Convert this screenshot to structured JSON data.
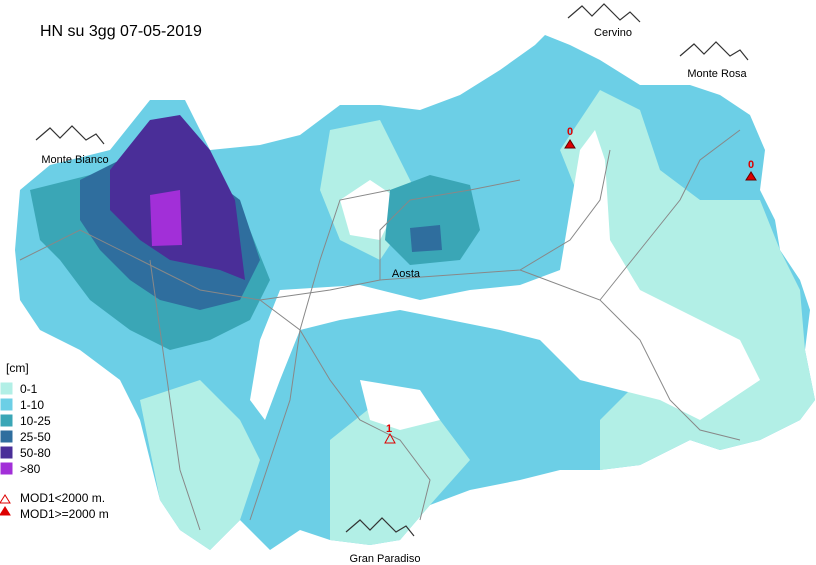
{
  "title": "HN su 3gg 07-05-2019",
  "places": [
    {
      "label": "Cervino"
    },
    {
      "label": "Monte Rosa"
    },
    {
      "label": "Monte Bianco"
    },
    {
      "label": "Aosta"
    },
    {
      "label": "Gran Paradiso"
    }
  ],
  "legend": {
    "unit": "[cm]",
    "classes": [
      {
        "label": "0-1",
        "color": "#b2efe6"
      },
      {
        "label": "1-10",
        "color": "#6ccfe6"
      },
      {
        "label": "10-25",
        "color": "#3aa6b6"
      },
      {
        "label": "25-50",
        "color": "#2f6e9e"
      },
      {
        "label": "50-80",
        "color": "#4a2e98"
      },
      {
        "label": ">80",
        "color": "#a22fd8"
      }
    ],
    "symbols": [
      {
        "label": "MOD1<2000 m."
      },
      {
        "label": "MOD1>=2000 m"
      }
    ]
  },
  "stations": [
    {
      "value": 0
    },
    {
      "value": 0
    },
    {
      "value": 1
    }
  ]
}
